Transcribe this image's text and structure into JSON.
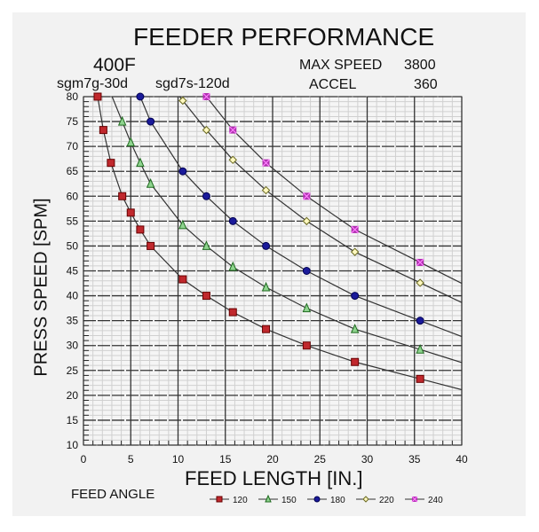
{
  "chart_data": {
    "type": "line",
    "title": "FEEDER PERFORMANCE",
    "model": "400F",
    "motor": "sgm7g-30d",
    "drive": "sgd7s-120d",
    "max_speed_label": "MAX SPEED",
    "max_speed": "3800",
    "accel_label": "ACCEL",
    "accel": "360",
    "xlabel": "FEED LENGTH [IN.]",
    "ylabel": "PRESS SPEED [SPM]",
    "xlim": [
      0,
      40
    ],
    "ylim": [
      10,
      80
    ],
    "xticks": [
      0,
      5,
      10,
      15,
      20,
      25,
      30,
      35,
      40
    ],
    "yticks": [
      10,
      15,
      20,
      25,
      30,
      35,
      40,
      45,
      50,
      55,
      60,
      65,
      70,
      75,
      80
    ],
    "grid": true,
    "legend_title": "FEED ANGLE",
    "legend_position": "bottom",
    "series": [
      {
        "name": "120",
        "color": "#c0282d",
        "marker": "square",
        "x": [
          1.5,
          2.1,
          2.9,
          4.1,
          5.0,
          6.0,
          7.1,
          10.5,
          13.0,
          15.8,
          19.3,
          23.6,
          28.7,
          35.6
        ],
        "y": [
          80,
          73.3,
          66.7,
          60,
          56.7,
          53.3,
          50,
          43.3,
          40,
          36.7,
          33.3,
          30,
          26.7,
          23.3
        ]
      },
      {
        "name": "150",
        "color": "#2e9a3a",
        "marker": "triangle",
        "x": [
          4.1,
          5.0,
          6.0,
          7.1,
          10.5,
          13.0,
          15.8,
          19.3,
          23.6,
          28.7,
          35.6
        ],
        "y": [
          75,
          70.8,
          66.7,
          62.5,
          54.2,
          50,
          45.8,
          41.7,
          37.5,
          33.3,
          29.2
        ]
      },
      {
        "name": "180",
        "color": "#1a1a9a",
        "marker": "circle",
        "x": [
          6.0,
          7.1,
          10.5,
          13.0,
          15.8,
          19.3,
          23.6,
          28.7,
          35.6
        ],
        "y": [
          80,
          75,
          65,
          60,
          55,
          50,
          45,
          40,
          35
        ]
      },
      {
        "name": "220",
        "color": "#d8d070",
        "marker": "diamond",
        "x": [
          10.5,
          13.0,
          15.8,
          19.3,
          23.6,
          28.7,
          35.6
        ],
        "y": [
          79.2,
          73.3,
          67.3,
          61.2,
          55,
          48.8,
          42.6
        ]
      },
      {
        "name": "240",
        "color": "#b030b0",
        "marker": "x-square",
        "x": [
          13.0,
          15.8,
          19.3,
          23.6,
          28.7,
          35.6
        ],
        "y": [
          80,
          73.3,
          66.7,
          60,
          53.3,
          46.7
        ]
      }
    ]
  }
}
